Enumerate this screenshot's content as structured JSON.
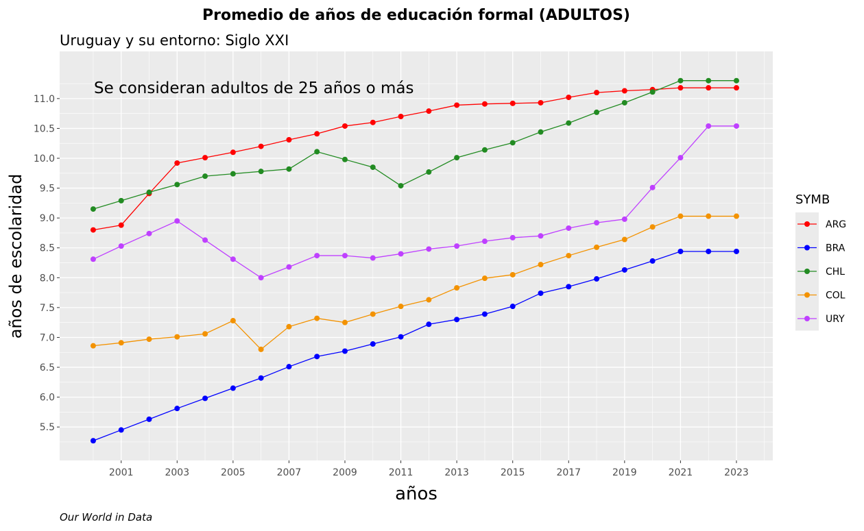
{
  "chart_data": {
    "type": "line",
    "title": "Promedio de años de educación formal   (ADULTOS)",
    "subtitle": "Uruguay y su entorno: Siglo XXI",
    "annotation": "Se consideran adultos de 25 años o más",
    "caption": "Our World in Data",
    "xlabel": "años",
    "ylabel": "años de escolaridad",
    "xlim": [
      1998.8,
      2024.3
    ],
    "ylim": [
      4.94,
      11.79
    ],
    "xticks": [
      2001,
      2003,
      2005,
      2007,
      2009,
      2011,
      2013,
      2015,
      2017,
      2019,
      2021,
      2023
    ],
    "yticks": [
      "5.5",
      "6.0",
      "6.5",
      "7.0",
      "7.5",
      "8.0",
      "8.5",
      "9.0",
      "9.5",
      "10.0",
      "10.5",
      "11.0"
    ],
    "grid": true,
    "legend_title": "SYMB",
    "legend_position": "right",
    "x": [
      2000,
      2001,
      2002,
      2003,
      2004,
      2005,
      2006,
      2007,
      2008,
      2009,
      2010,
      2011,
      2012,
      2013,
      2014,
      2015,
      2016,
      2017,
      2018,
      2019,
      2020,
      2021,
      2022,
      2023
    ],
    "series": [
      {
        "name": "ARG",
        "color": "#FF0000",
        "values": [
          8.8,
          8.88,
          9.41,
          9.92,
          10.01,
          10.1,
          10.2,
          10.31,
          10.41,
          10.54,
          10.6,
          10.7,
          10.79,
          10.89,
          10.91,
          10.92,
          10.93,
          11.02,
          11.1,
          11.13,
          11.15,
          11.18,
          11.18,
          11.18
        ]
      },
      {
        "name": "BRA",
        "color": "#0000FF",
        "values": [
          5.27,
          5.45,
          5.63,
          5.81,
          5.98,
          6.15,
          6.32,
          6.51,
          6.68,
          6.77,
          6.89,
          7.01,
          7.22,
          7.3,
          7.39,
          7.52,
          7.74,
          7.85,
          7.98,
          8.13,
          8.28,
          8.44,
          8.44,
          8.44
        ]
      },
      {
        "name": "CHL",
        "color": "#228B22",
        "values": [
          9.15,
          9.29,
          9.43,
          9.56,
          9.7,
          9.74,
          9.78,
          9.82,
          10.11,
          9.98,
          9.85,
          9.54,
          9.77,
          10.01,
          10.14,
          10.26,
          10.44,
          10.59,
          10.77,
          10.93,
          11.11,
          11.3,
          11.3,
          11.3
        ]
      },
      {
        "name": "COL",
        "color": "#F39200",
        "values": [
          6.86,
          6.91,
          6.97,
          7.01,
          7.06,
          7.28,
          6.8,
          7.18,
          7.32,
          7.25,
          7.39,
          7.52,
          7.63,
          7.83,
          7.99,
          8.05,
          8.22,
          8.37,
          8.51,
          8.64,
          8.85,
          9.03,
          9.03,
          9.03
        ]
      },
      {
        "name": "URY",
        "color": "#BF40FF",
        "values": [
          8.31,
          8.53,
          8.74,
          8.95,
          8.63,
          8.31,
          8.0,
          8.18,
          8.37,
          8.37,
          8.33,
          8.4,
          8.48,
          8.53,
          8.61,
          8.67,
          8.7,
          8.83,
          8.92,
          8.98,
          9.51,
          10.01,
          10.54,
          10.54
        ]
      }
    ]
  }
}
